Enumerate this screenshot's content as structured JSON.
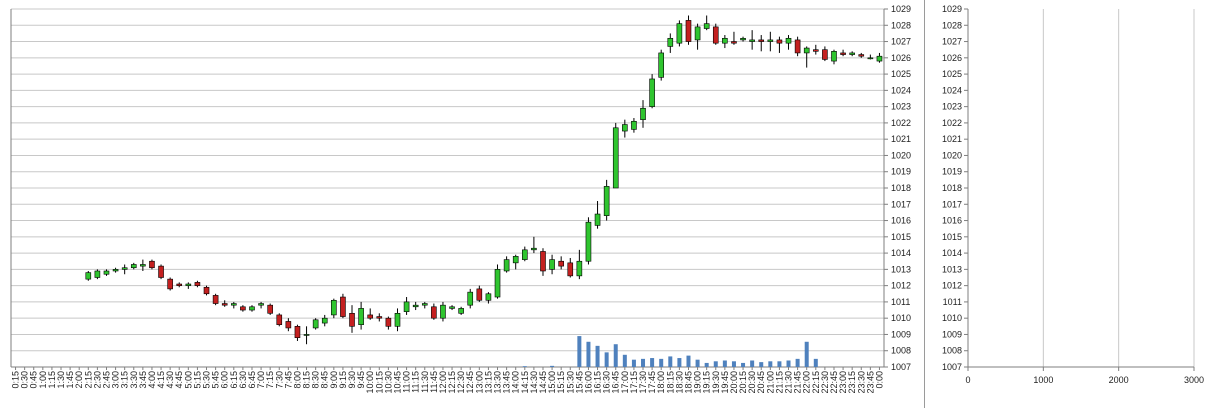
{
  "colors": {
    "up": "#2fc52f",
    "down": "#c42020",
    "wick": "#000000",
    "volume": "#4f81bd",
    "profile": "#4f81bd",
    "grid": "#c8c8c8",
    "axis": "#7f7f7f"
  },
  "chart_data": [
    {
      "type": "candlestick",
      "grid": true,
      "price_axis": "right",
      "ylim": [
        1007,
        1029
      ],
      "y_ticks": [
        1007,
        1008,
        1009,
        1010,
        1011,
        1012,
        1013,
        1014,
        1015,
        1016,
        1017,
        1018,
        1019,
        1020,
        1021,
        1022,
        1023,
        1024,
        1025,
        1026,
        1027,
        1028,
        1029
      ],
      "x_labels": [
        "0:15",
        "0:30",
        "0:45",
        "1:00",
        "1:15",
        "1:30",
        "1:45",
        "2:00",
        "2:15",
        "2:30",
        "2:45",
        "3:00",
        "3:15",
        "3:30",
        "3:45",
        "4:00",
        "4:15",
        "4:30",
        "4:45",
        "5:00",
        "5:15",
        "5:30",
        "5:45",
        "6:00",
        "6:15",
        "6:30",
        "6:45",
        "7:00",
        "7:15",
        "7:30",
        "7:45",
        "8:00",
        "8:15",
        "8:30",
        "8:45",
        "9:00",
        "9:15",
        "9:30",
        "9:45",
        "10:00",
        "10:15",
        "10:30",
        "10:45",
        "11:00",
        "11:15",
        "11:30",
        "11:45",
        "12:00",
        "12:15",
        "12:30",
        "12:45",
        "13:00",
        "13:15",
        "13:30",
        "13:45",
        "14:00",
        "14:15",
        "14:30",
        "14:45",
        "15:00",
        "15:15",
        "15:30",
        "15:45",
        "16:00",
        "16:15",
        "16:30",
        "16:45",
        "17:00",
        "17:15",
        "17:30",
        "17:45",
        "18:00",
        "18:15",
        "18:30",
        "18:45",
        "19:00",
        "19:15",
        "19:30",
        "19:45",
        "20:00",
        "20:15",
        "20:30",
        "20:45",
        "21:00",
        "21:15",
        "21:30",
        "21:45",
        "22:00",
        "22:15",
        "22:30",
        "22:45",
        "23:00",
        "23:15",
        "23:30",
        "23:45",
        "0:00"
      ],
      "candles": [
        {
          "x": "2:15",
          "o": 1012.4,
          "h": 1012.9,
          "l": 1012.3,
          "c": 1012.8
        },
        {
          "x": "2:30",
          "o": 1012.5,
          "h": 1013.0,
          "l": 1012.4,
          "c": 1012.9
        },
        {
          "x": "2:45",
          "o": 1012.7,
          "h": 1013.0,
          "l": 1012.6,
          "c": 1012.9
        },
        {
          "x": "3:00",
          "o": 1012.9,
          "h": 1013.1,
          "l": 1012.8,
          "c": 1013.0
        },
        {
          "x": "3:15",
          "o": 1013.0,
          "h": 1013.3,
          "l": 1012.7,
          "c": 1013.1
        },
        {
          "x": "3:30",
          "o": 1013.1,
          "h": 1013.4,
          "l": 1013.0,
          "c": 1013.3
        },
        {
          "x": "3:45",
          "o": 1013.2,
          "h": 1013.6,
          "l": 1012.9,
          "c": 1013.3
        },
        {
          "x": "4:00",
          "o": 1013.5,
          "h": 1013.6,
          "l": 1013.0,
          "c": 1013.1
        },
        {
          "x": "4:15",
          "o": 1013.2,
          "h": 1013.3,
          "l": 1012.4,
          "c": 1012.5
        },
        {
          "x": "4:30",
          "o": 1012.4,
          "h": 1012.5,
          "l": 1011.7,
          "c": 1011.8
        },
        {
          "x": "4:45",
          "o": 1012.1,
          "h": 1012.2,
          "l": 1011.9,
          "c": 1012.0
        },
        {
          "x": "5:00",
          "o": 1012.0,
          "h": 1012.2,
          "l": 1011.8,
          "c": 1012.1
        },
        {
          "x": "5:15",
          "o": 1012.2,
          "h": 1012.3,
          "l": 1011.9,
          "c": 1012.0
        },
        {
          "x": "5:30",
          "o": 1011.9,
          "h": 1012.0,
          "l": 1011.4,
          "c": 1011.5
        },
        {
          "x": "5:45",
          "o": 1011.4,
          "h": 1011.5,
          "l": 1010.8,
          "c": 1010.9
        },
        {
          "x": "6:00",
          "o": 1010.9,
          "h": 1011.1,
          "l": 1010.7,
          "c": 1010.8
        },
        {
          "x": "6:15",
          "o": 1010.8,
          "h": 1011.0,
          "l": 1010.6,
          "c": 1010.9
        },
        {
          "x": "6:30",
          "o": 1010.7,
          "h": 1010.8,
          "l": 1010.4,
          "c": 1010.5
        },
        {
          "x": "6:45",
          "o": 1010.5,
          "h": 1010.8,
          "l": 1010.4,
          "c": 1010.7
        },
        {
          "x": "7:00",
          "o": 1010.8,
          "h": 1011.0,
          "l": 1010.6,
          "c": 1010.9
        },
        {
          "x": "7:15",
          "o": 1010.8,
          "h": 1010.9,
          "l": 1010.2,
          "c": 1010.3
        },
        {
          "x": "7:30",
          "o": 1010.2,
          "h": 1010.3,
          "l": 1009.5,
          "c": 1009.6
        },
        {
          "x": "7:45",
          "o": 1009.8,
          "h": 1010.0,
          "l": 1009.2,
          "c": 1009.4
        },
        {
          "x": "8:00",
          "o": 1009.5,
          "h": 1009.6,
          "l": 1008.6,
          "c": 1008.8
        },
        {
          "x": "8:15",
          "o": 1009.0,
          "h": 1009.5,
          "l": 1008.4,
          "c": 1009.0
        },
        {
          "x": "8:30",
          "o": 1009.4,
          "h": 1010.0,
          "l": 1009.3,
          "c": 1009.9
        },
        {
          "x": "8:45",
          "o": 1009.7,
          "h": 1010.2,
          "l": 1009.5,
          "c": 1010.0
        },
        {
          "x": "9:00",
          "o": 1010.2,
          "h": 1011.2,
          "l": 1010.0,
          "c": 1011.1
        },
        {
          "x": "9:15",
          "o": 1011.3,
          "h": 1011.5,
          "l": 1010.0,
          "c": 1010.1
        },
        {
          "x": "9:30",
          "o": 1010.3,
          "h": 1010.8,
          "l": 1009.1,
          "c": 1009.5
        },
        {
          "x": "9:45",
          "o": 1009.6,
          "h": 1011.0,
          "l": 1009.3,
          "c": 1010.6
        },
        {
          "x": "10:00",
          "o": 1010.2,
          "h": 1010.6,
          "l": 1009.9,
          "c": 1010.0
        },
        {
          "x": "10:15",
          "o": 1010.1,
          "h": 1010.3,
          "l": 1009.8,
          "c": 1010.0
        },
        {
          "x": "10:30",
          "o": 1010.0,
          "h": 1010.1,
          "l": 1009.3,
          "c": 1009.5
        },
        {
          "x": "10:45",
          "o": 1009.5,
          "h": 1010.6,
          "l": 1009.2,
          "c": 1010.3
        },
        {
          "x": "11:00",
          "o": 1010.4,
          "h": 1011.3,
          "l": 1010.2,
          "c": 1011.0
        },
        {
          "x": "11:15",
          "o": 1010.7,
          "h": 1011.0,
          "l": 1010.5,
          "c": 1010.8
        },
        {
          "x": "11:30",
          "o": 1010.8,
          "h": 1011.0,
          "l": 1010.6,
          "c": 1010.9
        },
        {
          "x": "11:45",
          "o": 1010.7,
          "h": 1010.9,
          "l": 1009.9,
          "c": 1010.0
        },
        {
          "x": "12:00",
          "o": 1010.0,
          "h": 1011.0,
          "l": 1009.8,
          "c": 1010.8
        },
        {
          "x": "12:15",
          "o": 1010.6,
          "h": 1010.8,
          "l": 1010.5,
          "c": 1010.7
        },
        {
          "x": "12:30",
          "o": 1010.3,
          "h": 1010.7,
          "l": 1010.2,
          "c": 1010.6
        },
        {
          "x": "12:45",
          "o": 1010.8,
          "h": 1011.8,
          "l": 1010.6,
          "c": 1011.6
        },
        {
          "x": "13:00",
          "o": 1011.8,
          "h": 1012.0,
          "l": 1011.0,
          "c": 1011.1
        },
        {
          "x": "13:15",
          "o": 1011.1,
          "h": 1011.6,
          "l": 1010.9,
          "c": 1011.5
        },
        {
          "x": "13:30",
          "o": 1011.3,
          "h": 1013.3,
          "l": 1011.2,
          "c": 1013.0
        },
        {
          "x": "13:45",
          "o": 1012.9,
          "h": 1013.8,
          "l": 1012.8,
          "c": 1013.6
        },
        {
          "x": "14:00",
          "o": 1013.4,
          "h": 1013.9,
          "l": 1013.0,
          "c": 1013.8
        },
        {
          "x": "14:15",
          "o": 1013.6,
          "h": 1014.4,
          "l": 1013.5,
          "c": 1014.2
        },
        {
          "x": "14:30",
          "o": 1014.2,
          "h": 1015.0,
          "l": 1014.0,
          "c": 1014.3
        },
        {
          "x": "14:45",
          "o": 1014.1,
          "h": 1014.3,
          "l": 1012.6,
          "c": 1012.9
        },
        {
          "x": "15:00",
          "o": 1013.0,
          "h": 1013.9,
          "l": 1012.7,
          "c": 1013.6
        },
        {
          "x": "15:15",
          "o": 1013.5,
          "h": 1013.8,
          "l": 1013.0,
          "c": 1013.2
        },
        {
          "x": "15:30",
          "o": 1013.4,
          "h": 1013.7,
          "l": 1012.5,
          "c": 1012.6
        },
        {
          "x": "15:45",
          "o": 1012.6,
          "h": 1014.2,
          "l": 1012.4,
          "c": 1013.5
        },
        {
          "x": "16:00",
          "o": 1013.5,
          "h": 1016.2,
          "l": 1013.3,
          "c": 1015.9
        },
        {
          "x": "16:15",
          "o": 1015.7,
          "h": 1017.2,
          "l": 1015.5,
          "c": 1016.4
        },
        {
          "x": "16:30",
          "o": 1016.3,
          "h": 1018.5,
          "l": 1016.0,
          "c": 1018.1
        },
        {
          "x": "16:45",
          "o": 1018.0,
          "h": 1022.0,
          "l": 1018.0,
          "c": 1021.7
        },
        {
          "x": "17:00",
          "o": 1021.5,
          "h": 1022.2,
          "l": 1021.1,
          "c": 1021.9
        },
        {
          "x": "17:15",
          "o": 1021.6,
          "h": 1022.3,
          "l": 1021.4,
          "c": 1022.1
        },
        {
          "x": "17:30",
          "o": 1022.2,
          "h": 1023.4,
          "l": 1021.7,
          "c": 1022.9
        },
        {
          "x": "17:45",
          "o": 1023.0,
          "h": 1025.0,
          "l": 1022.9,
          "c": 1024.7
        },
        {
          "x": "18:00",
          "o": 1024.8,
          "h": 1026.5,
          "l": 1024.6,
          "c": 1026.3
        },
        {
          "x": "18:15",
          "o": 1026.7,
          "h": 1027.5,
          "l": 1026.3,
          "c": 1027.2
        },
        {
          "x": "18:30",
          "o": 1026.9,
          "h": 1028.3,
          "l": 1026.7,
          "c": 1028.1
        },
        {
          "x": "18:45",
          "o": 1028.3,
          "h": 1028.6,
          "l": 1026.8,
          "c": 1027.0
        },
        {
          "x": "19:00",
          "o": 1027.1,
          "h": 1028.1,
          "l": 1026.5,
          "c": 1027.9
        },
        {
          "x": "19:15",
          "o": 1027.8,
          "h": 1028.6,
          "l": 1027.7,
          "c": 1028.1
        },
        {
          "x": "19:30",
          "o": 1027.9,
          "h": 1028.1,
          "l": 1026.8,
          "c": 1026.9
        },
        {
          "x": "19:45",
          "o": 1026.9,
          "h": 1027.4,
          "l": 1026.6,
          "c": 1027.2
        },
        {
          "x": "20:00",
          "o": 1027.0,
          "h": 1027.6,
          "l": 1026.8,
          "c": 1026.9
        },
        {
          "x": "20:15",
          "o": 1027.1,
          "h": 1027.3,
          "l": 1027.0,
          "c": 1027.2
        },
        {
          "x": "20:30",
          "o": 1027.0,
          "h": 1027.7,
          "l": 1026.5,
          "c": 1027.1
        },
        {
          "x": "20:45",
          "o": 1027.1,
          "h": 1027.4,
          "l": 1026.4,
          "c": 1027.0
        },
        {
          "x": "21:00",
          "o": 1027.0,
          "h": 1027.6,
          "l": 1026.4,
          "c": 1027.1
        },
        {
          "x": "21:15",
          "o": 1027.1,
          "h": 1027.3,
          "l": 1026.3,
          "c": 1026.9
        },
        {
          "x": "21:30",
          "o": 1026.9,
          "h": 1027.4,
          "l": 1026.5,
          "c": 1027.2
        },
        {
          "x": "21:45",
          "o": 1027.1,
          "h": 1027.3,
          "l": 1026.1,
          "c": 1026.3
        },
        {
          "x": "22:00",
          "o": 1026.3,
          "h": 1026.7,
          "l": 1025.4,
          "c": 1026.6
        },
        {
          "x": "22:15",
          "o": 1026.5,
          "h": 1026.8,
          "l": 1026.2,
          "c": 1026.4
        },
        {
          "x": "22:30",
          "o": 1026.5,
          "h": 1026.7,
          "l": 1025.8,
          "c": 1025.9
        },
        {
          "x": "22:45",
          "o": 1025.8,
          "h": 1026.5,
          "l": 1025.6,
          "c": 1026.4
        },
        {
          "x": "23:00",
          "o": 1026.3,
          "h": 1026.5,
          "l": 1026.1,
          "c": 1026.2
        },
        {
          "x": "23:15",
          "o": 1026.2,
          "h": 1026.4,
          "l": 1026.1,
          "c": 1026.3
        },
        {
          "x": "23:30",
          "o": 1026.2,
          "h": 1026.3,
          "l": 1026.0,
          "c": 1026.1
        },
        {
          "x": "23:45",
          "o": 1026.0,
          "h": 1026.2,
          "l": 1025.9,
          "c": 1026.0
        },
        {
          "x": "0:00",
          "o": 1025.8,
          "h": 1026.3,
          "l": 1025.7,
          "c": 1026.1
        }
      ],
      "volume": [
        {
          "x": "14:15",
          "v": 0.05
        },
        {
          "x": "15:00",
          "v": 0.07
        },
        {
          "x": "15:45",
          "v": 1.9
        },
        {
          "x": "16:00",
          "v": 1.55
        },
        {
          "x": "16:15",
          "v": 1.3
        },
        {
          "x": "16:30",
          "v": 0.9
        },
        {
          "x": "16:45",
          "v": 1.4
        },
        {
          "x": "17:00",
          "v": 0.75
        },
        {
          "x": "17:15",
          "v": 0.45
        },
        {
          "x": "17:30",
          "v": 0.5
        },
        {
          "x": "17:45",
          "v": 0.55
        },
        {
          "x": "18:00",
          "v": 0.5
        },
        {
          "x": "18:15",
          "v": 0.65
        },
        {
          "x": "18:30",
          "v": 0.55
        },
        {
          "x": "18:45",
          "v": 0.7
        },
        {
          "x": "19:00",
          "v": 0.45
        },
        {
          "x": "19:15",
          "v": 0.25
        },
        {
          "x": "19:30",
          "v": 0.35
        },
        {
          "x": "19:45",
          "v": 0.4
        },
        {
          "x": "20:00",
          "v": 0.35
        },
        {
          "x": "20:15",
          "v": 0.25
        },
        {
          "x": "20:30",
          "v": 0.4
        },
        {
          "x": "20:45",
          "v": 0.3
        },
        {
          "x": "21:00",
          "v": 0.35
        },
        {
          "x": "21:15",
          "v": 0.35
        },
        {
          "x": "21:30",
          "v": 0.4
        },
        {
          "x": "21:45",
          "v": 0.5
        },
        {
          "x": "22:00",
          "v": 1.55
        },
        {
          "x": "22:15",
          "v": 0.5
        }
      ]
    },
    {
      "type": "bar",
      "orientation": "horizontal",
      "grid": true,
      "xlim": [
        0,
        3000
      ],
      "x_ticks": [
        0,
        1000,
        2000,
        3000
      ],
      "ylim": [
        1007,
        1029
      ],
      "y_ticks": [
        1007,
        1008,
        1009,
        1010,
        1011,
        1012,
        1013,
        1014,
        1015,
        1016,
        1017,
        1018,
        1019,
        1020,
        1021,
        1022,
        1023,
        1024,
        1025,
        1026,
        1027,
        1028,
        1029
      ],
      "levels_start": 1007.0,
      "level_step": 0.1,
      "values": [
        0,
        0,
        0,
        0,
        0,
        0,
        0,
        0,
        0,
        0,
        0,
        0,
        0,
        0,
        0,
        0,
        0,
        0,
        0,
        0,
        0,
        0,
        0,
        0,
        0,
        0,
        0,
        0,
        0,
        0,
        0,
        0,
        0,
        0,
        0,
        0,
        0,
        0,
        0,
        0,
        0,
        0,
        0,
        0,
        0,
        0,
        0,
        0,
        0,
        0,
        0,
        0,
        0,
        0,
        0,
        0,
        0,
        0,
        0,
        0,
        0,
        0,
        0,
        0,
        0,
        0,
        0,
        0,
        0,
        0,
        0,
        0,
        0,
        0,
        0,
        0,
        0,
        0,
        0,
        0,
        0,
        0,
        0,
        0,
        0,
        0,
        0,
        0,
        0,
        0,
        0,
        0,
        0,
        0,
        0,
        0,
        0,
        0,
        0,
        0,
        0,
        0,
        0,
        0,
        0,
        0,
        0,
        0,
        0,
        0,
        0,
        0,
        0,
        0,
        0,
        0,
        0,
        0,
        0,
        0,
        0,
        0,
        0,
        0,
        0,
        0,
        0,
        0,
        0,
        0,
        0,
        0,
        0,
        0,
        0,
        0,
        0,
        0,
        0,
        0,
        0,
        0,
        0,
        0,
        0,
        0,
        0,
        0,
        0,
        0,
        0,
        0,
        0,
        0,
        0,
        0,
        0,
        0,
        0,
        0,
        0,
        0,
        0,
        0,
        0,
        0,
        0,
        0,
        0,
        0,
        0,
        0,
        0,
        0,
        0,
        0,
        0,
        0,
        0,
        0,
        0,
        0,
        0,
        0,
        0,
        0,
        0,
        0,
        0,
        0,
        0,
        0,
        0,
        0,
        0,
        0,
        0,
        0,
        0,
        0,
        0,
        0,
        0,
        0,
        0,
        0,
        0,
        0,
        0,
        0,
        0,
        0,
        0,
        0,
        0,
        0,
        0,
        0,
        0,
        0
      ]
    }
  ]
}
